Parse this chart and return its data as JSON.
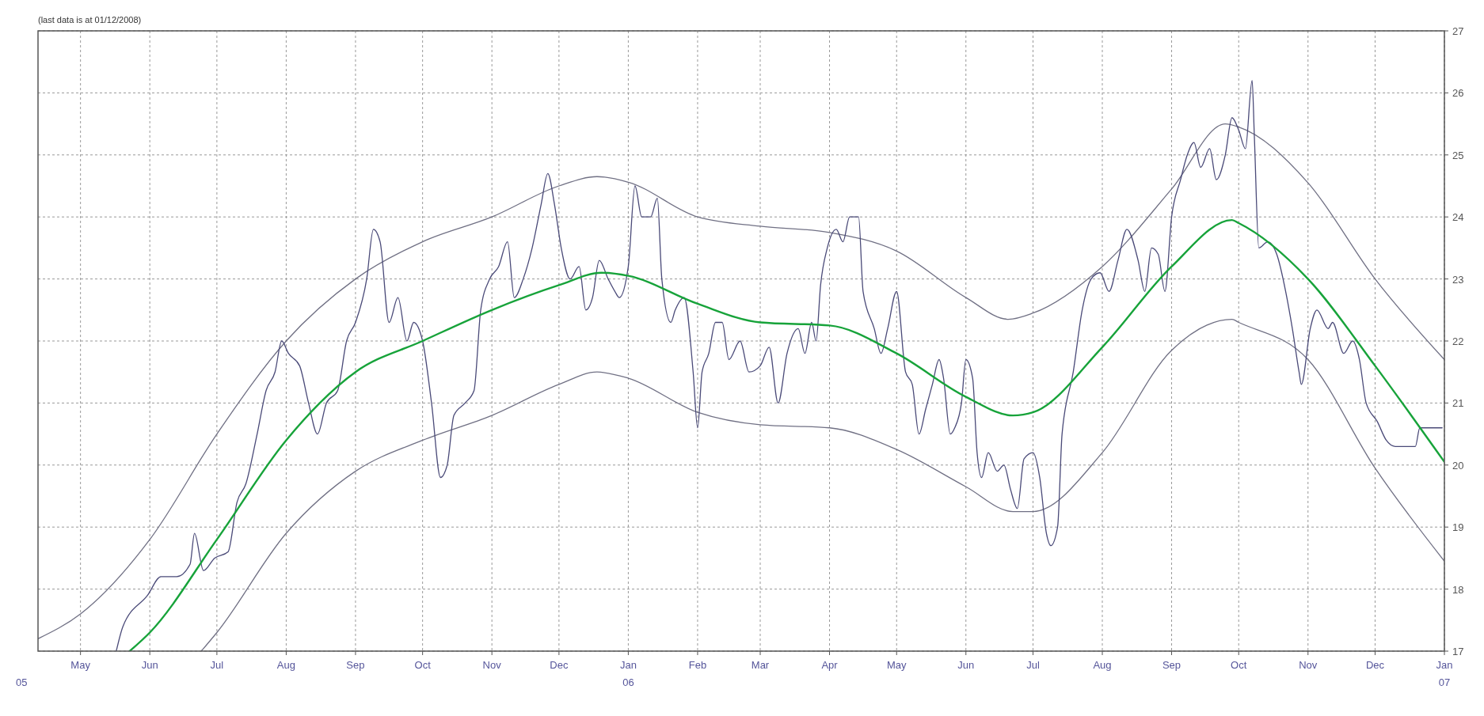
{
  "chart_data": {
    "type": "line",
    "title": "(last data is at 01/12/2008)",
    "xlim": [
      "2005-04-12",
      "2007-01-01"
    ],
    "xticks": [
      {
        "value": "2005-05-01",
        "label": "May"
      },
      {
        "value": "2005-06-01",
        "label": "Jun"
      },
      {
        "value": "2005-07-01",
        "label": "Jul"
      },
      {
        "value": "2005-08-01",
        "label": "Aug"
      },
      {
        "value": "2005-09-01",
        "label": "Sep"
      },
      {
        "value": "2005-10-01",
        "label": "Oct"
      },
      {
        "value": "2005-11-01",
        "label": "Nov"
      },
      {
        "value": "2005-12-01",
        "label": "Dec"
      },
      {
        "value": "2006-01-01",
        "label": "Jan\n06"
      },
      {
        "value": "2006-02-01",
        "label": "Feb"
      },
      {
        "value": "2006-03-01",
        "label": "Mar"
      },
      {
        "value": "2006-04-01",
        "label": "Apr"
      },
      {
        "value": "2006-05-01",
        "label": "May"
      },
      {
        "value": "2006-06-01",
        "label": "Jun"
      },
      {
        "value": "2006-07-01",
        "label": "Jul"
      },
      {
        "value": "2006-08-01",
        "label": "Aug"
      },
      {
        "value": "2006-09-01",
        "label": "Sep"
      },
      {
        "value": "2006-10-01",
        "label": "Oct"
      },
      {
        "value": "2006-11-01",
        "label": "Nov"
      },
      {
        "value": "2006-12-01",
        "label": "Dec"
      },
      {
        "value": "2007-01-01",
        "label": "Jan\n07"
      }
    ],
    "ylim": [
      17,
      27
    ],
    "yticks": [
      17,
      18,
      19,
      20,
      21,
      22,
      23,
      24,
      25,
      26,
      27
    ],
    "grid": true,
    "annotations": [
      "05"
    ],
    "series": [
      {
        "color": "#707084",
        "x": [
          "2005-04-12",
          "2005-05-01",
          "2005-06-01",
          "2005-07-01",
          "2005-08-01",
          "2005-09-01",
          "2005-10-01",
          "2005-11-01",
          "2005-12-01",
          "2005-12-18",
          "2006-01-01",
          "2006-02-01",
          "2006-03-01",
          "2006-04-01",
          "2006-05-01",
          "2006-06-01",
          "2006-06-20",
          "2006-07-01",
          "2006-08-01",
          "2006-09-01",
          "2006-09-25",
          "2006-10-01",
          "2006-11-01",
          "2006-12-01",
          "2007-01-01"
        ],
        "values": [
          17.2,
          17.6,
          18.8,
          20.5,
          22.0,
          23.0,
          23.6,
          24.0,
          24.5,
          24.65,
          24.56,
          24.0,
          23.85,
          23.75,
          23.45,
          22.7,
          22.35,
          22.45,
          23.2,
          24.45,
          25.5,
          25.45,
          24.55,
          23.0,
          21.7
        ]
      },
      {
        "color": "#707084",
        "x": [
          "2005-06-24",
          "2005-07-01",
          "2005-08-01",
          "2005-09-01",
          "2005-10-01",
          "2005-11-01",
          "2005-12-01",
          "2005-12-18",
          "2006-01-01",
          "2006-02-01",
          "2006-03-01",
          "2006-04-01",
          "2006-05-01",
          "2006-06-01",
          "2006-06-22",
          "2006-07-01",
          "2006-08-01",
          "2006-09-01",
          "2006-09-28",
          "2006-10-01",
          "2006-11-01",
          "2006-12-01",
          "2007-01-01"
        ],
        "values": [
          17.0,
          17.3,
          18.9,
          19.9,
          20.4,
          20.8,
          21.3,
          21.5,
          21.4,
          20.85,
          20.65,
          20.6,
          20.25,
          19.65,
          19.25,
          19.25,
          20.2,
          21.85,
          22.35,
          22.3,
          21.7,
          19.95,
          18.45
        ]
      },
      {
        "color": "#4a4a78",
        "x": [
          "2005-05-17",
          "2005-05-20",
          "2005-05-31",
          "2005-06-06",
          "2005-06-13",
          "2005-06-19",
          "2005-06-21",
          "2005-06-25",
          "2005-06-30",
          "2005-07-06",
          "2005-07-10",
          "2005-07-14",
          "2005-07-19",
          "2005-07-23",
          "2005-07-27",
          "2005-07-30",
          "2005-08-02",
          "2005-08-07",
          "2005-08-11",
          "2005-08-15",
          "2005-08-19",
          "2005-08-24",
          "2005-08-28",
          "2005-09-01",
          "2005-09-06",
          "2005-09-09",
          "2005-09-12",
          "2005-09-16",
          "2005-09-20",
          "2005-09-24",
          "2005-09-27",
          "2005-10-01",
          "2005-10-05",
          "2005-10-09",
          "2005-10-12",
          "2005-10-15",
          "2005-10-20",
          "2005-10-24",
          "2005-10-27",
          "2005-10-31",
          "2005-11-04",
          "2005-11-08",
          "2005-11-11",
          "2005-11-15",
          "2005-11-19",
          "2005-11-23",
          "2005-11-26",
          "2005-11-29",
          "2005-12-02",
          "2005-12-06",
          "2005-12-10",
          "2005-12-13",
          "2005-12-16",
          "2005-12-19",
          "2005-12-23",
          "2005-12-26",
          "2005-12-28",
          "2006-01-01",
          "2006-01-04",
          "2006-01-07",
          "2006-01-11",
          "2006-01-14",
          "2006-01-16",
          "2006-01-20",
          "2006-01-22",
          "2006-01-26",
          "2006-01-30",
          "2006-02-01",
          "2006-02-03",
          "2006-02-06",
          "2006-02-09",
          "2006-02-12",
          "2006-02-15",
          "2006-02-20",
          "2006-02-24",
          "2006-03-01",
          "2006-03-05",
          "2006-03-09",
          "2006-03-13",
          "2006-03-18",
          "2006-03-21",
          "2006-03-24",
          "2006-03-26",
          "2006-03-28",
          "2006-03-31",
          "2006-04-04",
          "2006-04-07",
          "2006-04-10",
          "2006-04-14",
          "2006-04-16",
          "2006-04-21",
          "2006-04-24",
          "2006-04-27",
          "2006-05-01",
          "2006-05-05",
          "2006-05-08",
          "2006-05-11",
          "2006-05-14",
          "2006-05-17",
          "2006-05-20",
          "2006-05-22",
          "2006-05-25",
          "2006-05-27",
          "2006-05-30",
          "2006-06-01",
          "2006-06-04",
          "2006-06-06",
          "2006-06-08",
          "2006-06-11",
          "2006-06-15",
          "2006-06-18",
          "2006-06-21",
          "2006-06-24",
          "2006-06-27",
          "2006-07-01",
          "2006-07-04",
          "2006-07-07",
          "2006-07-09",
          "2006-07-12",
          "2006-07-14",
          "2006-07-19",
          "2006-07-23",
          "2006-07-27",
          "2006-07-31",
          "2006-08-04",
          "2006-08-08",
          "2006-08-12",
          "2006-08-17",
          "2006-08-20",
          "2006-08-23",
          "2006-08-26",
          "2006-08-29",
          "2006-09-01",
          "2006-09-05",
          "2006-09-08",
          "2006-09-11",
          "2006-09-14",
          "2006-09-18",
          "2006-09-21",
          "2006-09-25",
          "2006-09-28",
          "2006-10-01",
          "2006-10-04",
          "2006-10-07",
          "2006-10-08",
          "2006-10-10",
          "2006-10-14",
          "2006-10-18",
          "2006-10-22",
          "2006-10-25",
          "2006-10-28",
          "2006-10-29",
          "2006-11-02",
          "2006-11-05",
          "2006-11-10",
          "2006-11-12",
          "2006-11-17",
          "2006-11-21",
          "2006-11-24",
          "2006-11-27",
          "2006-12-02",
          "2006-12-06",
          "2006-12-10",
          "2006-12-13",
          "2006-12-19",
          "2006-12-21",
          "2006-12-31"
        ],
        "values": [
          17.0,
          17.4,
          17.9,
          18.2,
          18.2,
          18.4,
          18.9,
          18.3,
          18.5,
          18.6,
          19.4,
          19.7,
          20.5,
          21.2,
          21.5,
          22.0,
          21.8,
          21.6,
          21.0,
          20.5,
          21.0,
          21.2,
          22.0,
          22.3,
          23.0,
          23.8,
          23.6,
          22.3,
          22.7,
          22.0,
          22.3,
          22.0,
          21.0,
          19.8,
          20.0,
          20.8,
          21.0,
          21.2,
          22.5,
          23.0,
          23.2,
          23.6,
          22.7,
          23.0,
          23.5,
          24.2,
          24.7,
          24.2,
          23.5,
          23.0,
          23.2,
          22.5,
          22.7,
          23.3,
          23.0,
          22.8,
          22.7,
          23.2,
          24.5,
          24.0,
          24.0,
          24.3,
          23.0,
          22.3,
          22.5,
          22.7,
          21.5,
          20.6,
          21.5,
          21.8,
          22.3,
          22.3,
          21.7,
          22.0,
          21.5,
          21.6,
          21.9,
          21.0,
          21.8,
          22.2,
          21.8,
          22.3,
          22.0,
          22.9,
          23.5,
          23.8,
          23.6,
          24.0,
          24.0,
          22.8,
          22.2,
          21.8,
          22.2,
          22.8,
          21.5,
          21.3,
          20.5,
          20.9,
          21.3,
          21.7,
          21.4,
          20.5,
          20.6,
          21.0,
          21.7,
          21.4,
          20.2,
          19.8,
          20.2,
          19.9,
          20.0,
          19.6,
          19.3,
          20.1,
          20.2,
          19.8,
          18.9,
          18.7,
          19.0,
          20.5,
          21.5,
          22.5,
          23.0,
          23.1,
          22.8,
          23.3,
          23.8,
          23.3,
          22.8,
          23.5,
          23.4,
          22.8,
          24.0,
          24.6,
          25.0,
          25.2,
          24.8,
          25.1,
          24.6,
          25.0,
          25.6,
          25.4,
          25.1,
          26.2,
          25.3,
          23.5,
          23.6,
          23.4,
          22.8,
          22.2,
          21.5,
          21.3,
          22.2,
          22.5,
          22.2,
          22.3,
          21.8,
          22.0,
          21.7,
          21.0,
          20.7,
          20.4,
          20.3,
          20.3,
          20.3,
          20.6,
          20.6
        ]
      },
      {
        "color": "#17a33a",
        "x": [
          "2005-05-23",
          "2005-06-01",
          "2005-07-01",
          "2005-08-01",
          "2005-09-01",
          "2005-10-01",
          "2005-11-01",
          "2005-12-01",
          "2005-12-20",
          "2006-01-01",
          "2006-02-01",
          "2006-03-01",
          "2006-04-01",
          "2006-05-01",
          "2006-06-01",
          "2006-06-22",
          "2006-07-01",
          "2006-08-01",
          "2006-09-01",
          "2006-09-28",
          "2006-10-01",
          "2006-11-01",
          "2006-12-01",
          "2007-01-01"
        ],
        "values": [
          17.0,
          17.3,
          18.8,
          20.4,
          21.5,
          22.0,
          22.5,
          22.9,
          23.1,
          23.05,
          22.6,
          22.3,
          22.25,
          21.8,
          21.1,
          20.8,
          20.85,
          21.9,
          23.2,
          23.95,
          23.9,
          23.0,
          21.6,
          20.05
        ]
      }
    ]
  }
}
